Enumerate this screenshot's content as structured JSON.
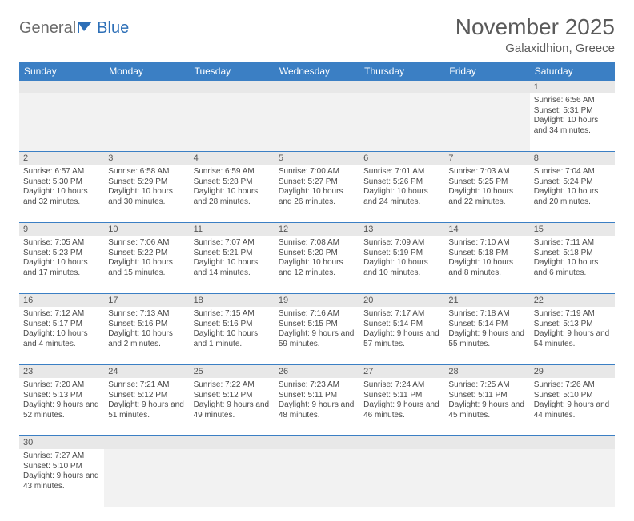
{
  "brand": {
    "part1": "General",
    "part2": "Blue"
  },
  "title": "November 2025",
  "location": "Galaxidhion, Greece",
  "colors": {
    "header_bg": "#3b7fc4",
    "header_text": "#ffffff",
    "daynum_bg": "#e8e8e8",
    "row_divider": "#3b7fc4",
    "text": "#4a4a4a",
    "title_color": "#5a5a5a"
  },
  "day_names": [
    "Sunday",
    "Monday",
    "Tuesday",
    "Wednesday",
    "Thursday",
    "Friday",
    "Saturday"
  ],
  "weeks": [
    [
      null,
      null,
      null,
      null,
      null,
      null,
      {
        "n": "1",
        "sr": "Sunrise: 6:56 AM",
        "ss": "Sunset: 5:31 PM",
        "dl": "Daylight: 10 hours and 34 minutes."
      }
    ],
    [
      {
        "n": "2",
        "sr": "Sunrise: 6:57 AM",
        "ss": "Sunset: 5:30 PM",
        "dl": "Daylight: 10 hours and 32 minutes."
      },
      {
        "n": "3",
        "sr": "Sunrise: 6:58 AM",
        "ss": "Sunset: 5:29 PM",
        "dl": "Daylight: 10 hours and 30 minutes."
      },
      {
        "n": "4",
        "sr": "Sunrise: 6:59 AM",
        "ss": "Sunset: 5:28 PM",
        "dl": "Daylight: 10 hours and 28 minutes."
      },
      {
        "n": "5",
        "sr": "Sunrise: 7:00 AM",
        "ss": "Sunset: 5:27 PM",
        "dl": "Daylight: 10 hours and 26 minutes."
      },
      {
        "n": "6",
        "sr": "Sunrise: 7:01 AM",
        "ss": "Sunset: 5:26 PM",
        "dl": "Daylight: 10 hours and 24 minutes."
      },
      {
        "n": "7",
        "sr": "Sunrise: 7:03 AM",
        "ss": "Sunset: 5:25 PM",
        "dl": "Daylight: 10 hours and 22 minutes."
      },
      {
        "n": "8",
        "sr": "Sunrise: 7:04 AM",
        "ss": "Sunset: 5:24 PM",
        "dl": "Daylight: 10 hours and 20 minutes."
      }
    ],
    [
      {
        "n": "9",
        "sr": "Sunrise: 7:05 AM",
        "ss": "Sunset: 5:23 PM",
        "dl": "Daylight: 10 hours and 17 minutes."
      },
      {
        "n": "10",
        "sr": "Sunrise: 7:06 AM",
        "ss": "Sunset: 5:22 PM",
        "dl": "Daylight: 10 hours and 15 minutes."
      },
      {
        "n": "11",
        "sr": "Sunrise: 7:07 AM",
        "ss": "Sunset: 5:21 PM",
        "dl": "Daylight: 10 hours and 14 minutes."
      },
      {
        "n": "12",
        "sr": "Sunrise: 7:08 AM",
        "ss": "Sunset: 5:20 PM",
        "dl": "Daylight: 10 hours and 12 minutes."
      },
      {
        "n": "13",
        "sr": "Sunrise: 7:09 AM",
        "ss": "Sunset: 5:19 PM",
        "dl": "Daylight: 10 hours and 10 minutes."
      },
      {
        "n": "14",
        "sr": "Sunrise: 7:10 AM",
        "ss": "Sunset: 5:18 PM",
        "dl": "Daylight: 10 hours and 8 minutes."
      },
      {
        "n": "15",
        "sr": "Sunrise: 7:11 AM",
        "ss": "Sunset: 5:18 PM",
        "dl": "Daylight: 10 hours and 6 minutes."
      }
    ],
    [
      {
        "n": "16",
        "sr": "Sunrise: 7:12 AM",
        "ss": "Sunset: 5:17 PM",
        "dl": "Daylight: 10 hours and 4 minutes."
      },
      {
        "n": "17",
        "sr": "Sunrise: 7:13 AM",
        "ss": "Sunset: 5:16 PM",
        "dl": "Daylight: 10 hours and 2 minutes."
      },
      {
        "n": "18",
        "sr": "Sunrise: 7:15 AM",
        "ss": "Sunset: 5:16 PM",
        "dl": "Daylight: 10 hours and 1 minute."
      },
      {
        "n": "19",
        "sr": "Sunrise: 7:16 AM",
        "ss": "Sunset: 5:15 PM",
        "dl": "Daylight: 9 hours and 59 minutes."
      },
      {
        "n": "20",
        "sr": "Sunrise: 7:17 AM",
        "ss": "Sunset: 5:14 PM",
        "dl": "Daylight: 9 hours and 57 minutes."
      },
      {
        "n": "21",
        "sr": "Sunrise: 7:18 AM",
        "ss": "Sunset: 5:14 PM",
        "dl": "Daylight: 9 hours and 55 minutes."
      },
      {
        "n": "22",
        "sr": "Sunrise: 7:19 AM",
        "ss": "Sunset: 5:13 PM",
        "dl": "Daylight: 9 hours and 54 minutes."
      }
    ],
    [
      {
        "n": "23",
        "sr": "Sunrise: 7:20 AM",
        "ss": "Sunset: 5:13 PM",
        "dl": "Daylight: 9 hours and 52 minutes."
      },
      {
        "n": "24",
        "sr": "Sunrise: 7:21 AM",
        "ss": "Sunset: 5:12 PM",
        "dl": "Daylight: 9 hours and 51 minutes."
      },
      {
        "n": "25",
        "sr": "Sunrise: 7:22 AM",
        "ss": "Sunset: 5:12 PM",
        "dl": "Daylight: 9 hours and 49 minutes."
      },
      {
        "n": "26",
        "sr": "Sunrise: 7:23 AM",
        "ss": "Sunset: 5:11 PM",
        "dl": "Daylight: 9 hours and 48 minutes."
      },
      {
        "n": "27",
        "sr": "Sunrise: 7:24 AM",
        "ss": "Sunset: 5:11 PM",
        "dl": "Daylight: 9 hours and 46 minutes."
      },
      {
        "n": "28",
        "sr": "Sunrise: 7:25 AM",
        "ss": "Sunset: 5:11 PM",
        "dl": "Daylight: 9 hours and 45 minutes."
      },
      {
        "n": "29",
        "sr": "Sunrise: 7:26 AM",
        "ss": "Sunset: 5:10 PM",
        "dl": "Daylight: 9 hours and 44 minutes."
      }
    ],
    [
      {
        "n": "30",
        "sr": "Sunrise: 7:27 AM",
        "ss": "Sunset: 5:10 PM",
        "dl": "Daylight: 9 hours and 43 minutes."
      },
      null,
      null,
      null,
      null,
      null,
      null
    ]
  ]
}
